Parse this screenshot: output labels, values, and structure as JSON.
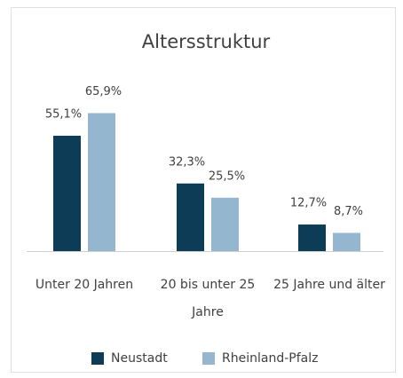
{
  "chart_data": {
    "type": "bar",
    "title": "Altersstruktur",
    "categories": [
      "Unter 20 Jahren",
      "20 bis unter 25 Jahre",
      "25 Jahre und älter"
    ],
    "series": [
      {
        "name": "Neustadt",
        "color": "#0d3d56",
        "values": [
          55.1,
          32.3,
          12.7
        ],
        "value_labels": [
          "55,1%",
          "32,3%",
          "12,7%"
        ]
      },
      {
        "name": "Rheinland-Pfalz",
        "color": "#94b6cf",
        "values": [
          65.9,
          25.5,
          8.7
        ],
        "value_labels": [
          "65,9%",
          "25,5%",
          "8,7%"
        ]
      }
    ]
  }
}
